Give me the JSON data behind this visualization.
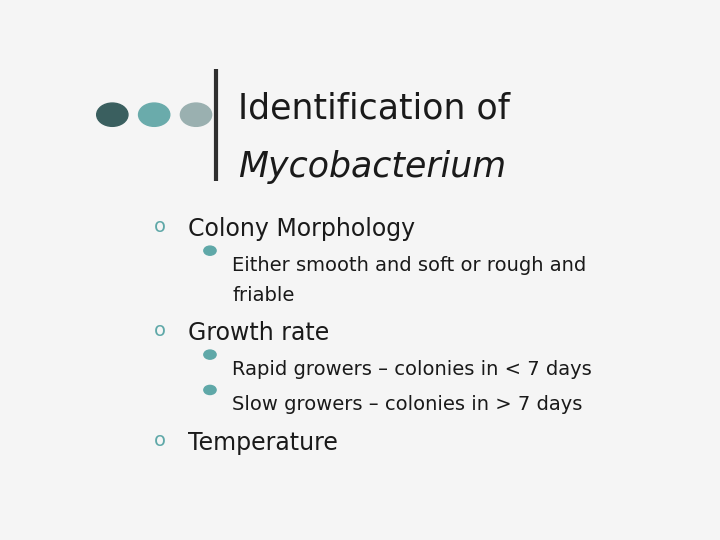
{
  "title_line1": "Identification of",
  "title_line2": "Mycobacterium",
  "background_color": "#f5f5f5",
  "title_bar_color": "#2f2f2f",
  "dot_colors": [
    "#3a5f5f",
    "#6aabab",
    "#9ab0b0"
  ],
  "bullet_color_main": "#5fa8a8",
  "bullet_color_sub": "#5fa8a8",
  "items": [
    {
      "level": 1,
      "text": "Colony Morphology",
      "sub": [
        "Either smooth and soft or rough and\n        friable"
      ]
    },
    {
      "level": 1,
      "text": "Growth rate",
      "sub": [
        "Rapid growers – colonies in < 7 days",
        "Slow growers – colonies in > 7 days"
      ]
    },
    {
      "level": 1,
      "text": "Temperature",
      "sub": []
    }
  ]
}
